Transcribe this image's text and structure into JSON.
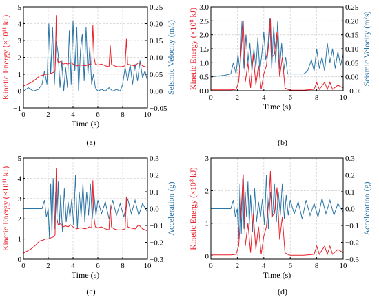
{
  "colors": {
    "energy": "#e8202a",
    "secondary": "#2b74a6",
    "axis": "#000000",
    "grid": "#d4d4d4"
  },
  "chart_data": [
    {
      "type": "line",
      "caption": "(a)",
      "xlabel": "Time (s)",
      "ylabel_left": "Kinetic Energy (×10¹¹ kJ)",
      "ylabel_right": "Seismic Velocity (m/s)",
      "xlim": [
        0,
        10
      ],
      "xticks": [
        "0",
        "2",
        "4",
        "6",
        "8",
        "10"
      ],
      "ylim_left": [
        -1,
        5
      ],
      "yticks_left": [
        "−1",
        "0",
        "1",
        "2",
        "3",
        "4",
        "5"
      ],
      "ylim_right": [
        -0.05,
        0.25
      ],
      "yticks_right": [
        "−0.05",
        "0.00",
        "0.05",
        "0.10",
        "0.15",
        "0.20",
        "0.25"
      ],
      "grid": true,
      "series": [
        {
          "axis": "left",
          "color": "#e8202a",
          "x": [
            0,
            0.3,
            0.6,
            1.0,
            1.3,
            1.6,
            1.8,
            2.0,
            2.2,
            2.4,
            2.55,
            2.65,
            2.7,
            2.8,
            3.0,
            3.2,
            3.4,
            3.6,
            3.8,
            4.0,
            4.3,
            4.6,
            5.0,
            5.3,
            5.5,
            5.6,
            5.7,
            5.8,
            6.0,
            6.3,
            6.6,
            6.9,
            7.0,
            7.1,
            7.3,
            7.6,
            7.9,
            8.2,
            8.3,
            8.4,
            8.6,
            9.0,
            9.3,
            9.6,
            10
          ],
          "y": [
            0.3,
            0.4,
            0.5,
            0.7,
            0.9,
            0.95,
            1.0,
            1.0,
            1.05,
            1.1,
            1.2,
            4.5,
            2.0,
            1.7,
            1.75,
            1.6,
            1.65,
            1.6,
            1.7,
            1.6,
            1.5,
            1.55,
            1.5,
            1.6,
            1.55,
            3.9,
            2.0,
            1.6,
            1.55,
            1.6,
            1.5,
            1.45,
            2.7,
            1.6,
            1.5,
            1.45,
            1.45,
            1.5,
            3.1,
            1.6,
            1.55,
            1.5,
            1.7,
            1.5,
            1.4
          ]
        },
        {
          "axis": "right",
          "color": "#2b74a6",
          "x": [
            0,
            0.4,
            0.8,
            1.2,
            1.5,
            1.7,
            1.9,
            2.05,
            2.2,
            2.35,
            2.5,
            2.65,
            2.8,
            2.95,
            3.1,
            3.25,
            3.4,
            3.55,
            3.7,
            3.85,
            4.0,
            4.15,
            4.3,
            4.45,
            4.6,
            4.75,
            4.9,
            5.05,
            5.2,
            5.35,
            5.5,
            5.65,
            5.8,
            6.0,
            6.3,
            6.6,
            6.9,
            7.2,
            7.5,
            7.8,
            8.0,
            8.2,
            8.4,
            8.6,
            8.8,
            9.0,
            9.2,
            9.4,
            9.6,
            9.8,
            10
          ],
          "y": [
            0.0,
            0.01,
            0.0,
            0.005,
            0.02,
            0.06,
            0.02,
            0.2,
            0.05,
            0.19,
            0.02,
            0.15,
            0.11,
            0.01,
            0.09,
            0.0,
            0.07,
            0.01,
            0.18,
            0.02,
            0.21,
            0.06,
            0.19,
            0.0,
            0.12,
            0.17,
            0.03,
            0.19,
            0.05,
            0.13,
            0.02,
            0.05,
            0.01,
            0.0,
            0.005,
            0.0,
            0.01,
            0.0,
            0.005,
            0.0,
            0.02,
            0.07,
            0.03,
            0.08,
            0.02,
            0.08,
            0.03,
            0.09,
            0.04,
            0.06,
            0.03
          ]
        }
      ]
    },
    {
      "type": "line",
      "caption": "(b)",
      "xlabel": "Time (s)",
      "ylabel_left": "Kinetic Energy (×10⁸ kJ)",
      "ylabel_right": "Seismic Velocity (m/s)",
      "xlim": [
        0,
        10
      ],
      "xticks": [
        "0",
        "2",
        "4",
        "6",
        "8",
        "10"
      ],
      "ylim_left": [
        0,
        3.0
      ],
      "yticks_left": [
        "0.0",
        "0.5",
        "1.0",
        "1.5",
        "2.0",
        "2.5",
        "3.0"
      ],
      "ylim_right": [
        -0.05,
        0.25
      ],
      "yticks_right": [
        "−0.05",
        "0.00",
        "0.05",
        "0.10",
        "0.15",
        "0.20",
        "0.25"
      ],
      "grid": true,
      "series": [
        {
          "axis": "left",
          "color": "#e8202a",
          "x": [
            0,
            1.5,
            1.9,
            2.1,
            2.3,
            2.45,
            2.6,
            2.8,
            3.0,
            3.2,
            3.4,
            3.6,
            3.8,
            4.0,
            4.2,
            4.4,
            4.5,
            4.6,
            4.8,
            5.0,
            5.2,
            5.4,
            5.6,
            5.8,
            6.0,
            7.0,
            7.8,
            8.0,
            8.2,
            8.6,
            8.8,
            9.0,
            9.2,
            9.6,
            10
          ],
          "y": [
            0.03,
            0.03,
            0.05,
            0.3,
            1.5,
            2.5,
            0.3,
            1.0,
            0.1,
            1.3,
            0.2,
            0.9,
            0.05,
            0.6,
            0.9,
            1.8,
            2.6,
            1.2,
            1.3,
            2.1,
            0.5,
            1.2,
            0.1,
            0.05,
            0.02,
            0.02,
            0.05,
            0.3,
            0.05,
            0.3,
            0.05,
            0.3,
            0.05,
            0.2,
            0.1
          ]
        },
        {
          "axis": "right",
          "color": "#2b74a6",
          "x": [
            0,
            1.0,
            1.5,
            1.7,
            1.9,
            2.05,
            2.2,
            2.35,
            2.5,
            2.65,
            2.8,
            2.95,
            3.1,
            3.25,
            3.4,
            3.55,
            3.7,
            3.85,
            4.0,
            4.15,
            4.3,
            4.45,
            4.6,
            4.75,
            4.9,
            5.05,
            5.2,
            5.35,
            5.5,
            5.65,
            5.8,
            6.0,
            6.5,
            7.0,
            7.3,
            7.6,
            7.8,
            8.0,
            8.2,
            8.4,
            8.6,
            8.8,
            9.0,
            9.2,
            9.4,
            9.6,
            9.8,
            10
          ],
          "y": [
            0.0,
            0.005,
            0.01,
            0.05,
            0.01,
            0.08,
            0.02,
            0.2,
            0.03,
            0.15,
            0.05,
            0.12,
            0.02,
            0.1,
            0.03,
            0.14,
            0.02,
            0.08,
            0.16,
            0.06,
            0.1,
            0.21,
            0.03,
            0.18,
            0.05,
            0.2,
            0.03,
            0.12,
            0.02,
            0.07,
            0.01,
            0.01,
            0.01,
            0.01,
            0.02,
            0.06,
            0.02,
            0.1,
            0.03,
            0.07,
            0.02,
            0.12,
            0.05,
            0.1,
            0.03,
            0.09,
            0.04,
            0.08
          ]
        }
      ]
    },
    {
      "type": "line",
      "caption": "(c)",
      "xlabel": "Time (s)",
      "ylabel_left": "Kinetic Energy (×10¹¹ kJ)",
      "ylabel_right": "Acceleration (g)",
      "xlim": [
        0,
        10
      ],
      "xticks": [
        "0",
        "2",
        "4",
        "6",
        "8",
        "10"
      ],
      "ylim_left": [
        0,
        5
      ],
      "yticks_left": [
        "0",
        "1",
        "2",
        "3",
        "4",
        "5"
      ],
      "ylim_right": [
        -0.3,
        0.3
      ],
      "yticks_right": [
        "−0.3",
        "−0.2",
        "−0.1",
        "0.0",
        "0.1",
        "0.2",
        "0.3"
      ],
      "grid": true,
      "series": [
        {
          "axis": "left",
          "color": "#e8202a",
          "x": [
            0,
            0.3,
            0.6,
            1.0,
            1.3,
            1.6,
            1.8,
            2.0,
            2.2,
            2.4,
            2.55,
            2.65,
            2.7,
            2.8,
            3.0,
            3.2,
            3.4,
            3.6,
            3.8,
            4.0,
            4.3,
            4.6,
            5.0,
            5.3,
            5.5,
            5.6,
            5.7,
            5.8,
            6.0,
            6.3,
            6.6,
            6.9,
            7.0,
            7.1,
            7.3,
            7.6,
            7.9,
            8.2,
            8.3,
            8.4,
            8.6,
            9.0,
            9.3,
            9.6,
            10
          ],
          "y": [
            0.3,
            0.4,
            0.5,
            0.7,
            0.9,
            0.95,
            1.0,
            1.0,
            1.05,
            1.1,
            1.2,
            4.5,
            2.0,
            1.7,
            1.75,
            1.6,
            1.65,
            1.6,
            1.7,
            1.6,
            1.5,
            1.55,
            1.5,
            1.6,
            1.55,
            3.9,
            2.0,
            1.6,
            1.55,
            1.6,
            1.5,
            1.45,
            2.7,
            1.6,
            1.5,
            1.45,
            1.45,
            1.5,
            3.1,
            1.6,
            1.55,
            1.5,
            1.7,
            1.5,
            1.4
          ]
        },
        {
          "axis": "right",
          "color": "#2b74a6",
          "x": [
            0,
            0.5,
            1.0,
            1.5,
            1.7,
            1.85,
            2.0,
            2.1,
            2.2,
            2.3,
            2.4,
            2.5,
            2.6,
            2.7,
            2.8,
            2.9,
            3.0,
            3.15,
            3.3,
            3.45,
            3.6,
            3.75,
            3.9,
            4.05,
            4.2,
            4.35,
            4.5,
            4.65,
            4.8,
            4.95,
            5.1,
            5.25,
            5.4,
            5.55,
            5.7,
            5.85,
            6.0,
            6.3,
            6.6,
            6.9,
            7.2,
            7.5,
            7.8,
            8.1,
            8.4,
            8.7,
            9.0,
            9.3,
            9.6,
            10
          ],
          "y": [
            0.0,
            0.0,
            0.0,
            0.0,
            0.05,
            -0.05,
            0.0,
            -0.18,
            0.15,
            -0.15,
            0.18,
            -0.12,
            0.1,
            -0.05,
            0.16,
            -0.1,
            0.08,
            -0.14,
            0.12,
            -0.08,
            0.04,
            -0.05,
            0.06,
            -0.1,
            0.2,
            -0.12,
            0.1,
            -0.05,
            0.15,
            -0.08,
            0.1,
            -0.04,
            0.15,
            -0.06,
            0.08,
            -0.04,
            0.05,
            -0.03,
            0.04,
            -0.06,
            0.05,
            -0.04,
            0.03,
            -0.05,
            0.06,
            -0.03,
            0.05,
            -0.04,
            0.03,
            -0.02
          ]
        }
      ]
    },
    {
      "type": "line",
      "caption": "(d)",
      "xlabel": "Time (s)",
      "ylabel_left": "Kinetic Energy (×10⁸ kJ)",
      "ylabel_right": "Acceleration (g)",
      "xlim": [
        0,
        10
      ],
      "xticks": [
        "0",
        "2",
        "4",
        "6",
        "8",
        "10"
      ],
      "ylim_left": [
        -0.1,
        3
      ],
      "yticks_left": [
        "0",
        "1",
        "2",
        "3"
      ],
      "ylim_right": [
        -0.3,
        0.3
      ],
      "yticks_right": [
        "−0.3",
        "−0.2",
        "−0.1",
        "0.0",
        "0.1",
        "0.2",
        "0.3"
      ],
      "grid": true,
      "series": [
        {
          "axis": "left",
          "color": "#e8202a",
          "x": [
            0,
            1.5,
            1.9,
            2.1,
            2.3,
            2.45,
            2.6,
            2.8,
            3.0,
            3.2,
            3.4,
            3.6,
            3.8,
            4.0,
            4.2,
            4.4,
            4.5,
            4.6,
            4.8,
            5.0,
            5.2,
            5.4,
            5.6,
            5.8,
            6.0,
            7.0,
            7.8,
            8.0,
            8.2,
            8.6,
            8.8,
            9.0,
            9.2,
            9.6,
            10
          ],
          "y": [
            0.03,
            0.03,
            0.05,
            0.3,
            1.5,
            2.5,
            0.3,
            1.0,
            0.1,
            1.3,
            0.2,
            0.9,
            0.05,
            0.6,
            0.9,
            1.8,
            2.6,
            1.2,
            1.3,
            2.1,
            0.5,
            1.2,
            0.1,
            0.05,
            0.02,
            0.02,
            0.05,
            0.3,
            0.05,
            0.3,
            0.05,
            0.3,
            0.05,
            0.2,
            0.1
          ]
        },
        {
          "axis": "right",
          "color": "#2b74a6",
          "x": [
            0,
            0.5,
            1.0,
            1.5,
            1.7,
            1.85,
            2.0,
            2.1,
            2.2,
            2.3,
            2.4,
            2.5,
            2.6,
            2.7,
            2.8,
            2.9,
            3.0,
            3.15,
            3.3,
            3.45,
            3.6,
            3.75,
            3.9,
            4.05,
            4.2,
            4.35,
            4.5,
            4.65,
            4.8,
            4.95,
            5.1,
            5.25,
            5.4,
            5.55,
            5.7,
            5.85,
            6.0,
            6.3,
            6.6,
            6.9,
            7.2,
            7.5,
            7.8,
            8.1,
            8.4,
            8.7,
            9.0,
            9.3,
            9.6,
            10
          ],
          "y": [
            0.0,
            0.0,
            0.0,
            0.0,
            0.05,
            -0.05,
            0.0,
            -0.18,
            0.15,
            -0.15,
            0.18,
            -0.12,
            0.1,
            -0.05,
            0.16,
            -0.1,
            0.08,
            -0.14,
            0.12,
            -0.08,
            0.04,
            -0.05,
            0.06,
            -0.1,
            0.2,
            -0.12,
            0.1,
            -0.05,
            0.15,
            -0.08,
            0.1,
            -0.04,
            0.15,
            -0.06,
            0.08,
            -0.04,
            0.05,
            -0.03,
            0.04,
            -0.06,
            0.05,
            -0.04,
            0.03,
            -0.05,
            0.06,
            -0.03,
            0.05,
            -0.04,
            0.03,
            -0.02
          ]
        }
      ]
    }
  ]
}
